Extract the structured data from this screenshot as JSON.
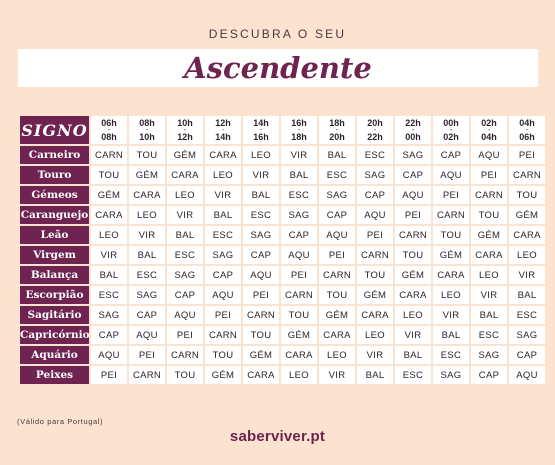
{
  "header": {
    "subtitle": "DESCUBRA O SEU",
    "title": "Ascendente"
  },
  "table": {
    "corner_label": "SIGNO",
    "hours": [
      {
        "from": "06h",
        "to": "08h"
      },
      {
        "from": "08h",
        "to": "10h"
      },
      {
        "from": "10h",
        "to": "12h"
      },
      {
        "from": "12h",
        "to": "14h"
      },
      {
        "from": "14h",
        "to": "16h"
      },
      {
        "from": "16h",
        "to": "18h"
      },
      {
        "from": "18h",
        "to": "20h"
      },
      {
        "from": "20h",
        "to": "22h"
      },
      {
        "from": "22h",
        "to": "00h"
      },
      {
        "from": "00h",
        "to": "02h"
      },
      {
        "from": "02h",
        "to": "04h"
      },
      {
        "from": "04h",
        "to": "06h"
      }
    ],
    "rows": [
      {
        "sign": "Carneiro",
        "values": [
          "CARN",
          "TOU",
          "GÉM",
          "CARA",
          "LEO",
          "VIR",
          "BAL",
          "ESC",
          "SAG",
          "CAP",
          "AQU",
          "PEI"
        ]
      },
      {
        "sign": "Touro",
        "values": [
          "TOU",
          "GÉM",
          "CARA",
          "LEO",
          "VIR",
          "BAL",
          "ESC",
          "SAG",
          "CAP",
          "AQU",
          "PEI",
          "CARN"
        ]
      },
      {
        "sign": "Gémeos",
        "values": [
          "GÉM",
          "CARA",
          "LEO",
          "VIR",
          "BAL",
          "ESC",
          "SAG",
          "CAP",
          "AQU",
          "PEI",
          "CARN",
          "TOU"
        ]
      },
      {
        "sign": "Caranguejo",
        "values": [
          "CARA",
          "LEO",
          "VIR",
          "BAL",
          "ESC",
          "SAG",
          "CAP",
          "AQU",
          "PEI",
          "CARN",
          "TOU",
          "GÉM"
        ]
      },
      {
        "sign": "Leão",
        "values": [
          "LEO",
          "VIR",
          "BAL",
          "ESC",
          "SAG",
          "CAP",
          "AQU",
          "PEI",
          "CARN",
          "TOU",
          "GÉM",
          "CARA"
        ]
      },
      {
        "sign": "Virgem",
        "values": [
          "VIR",
          "BAL",
          "ESC",
          "SAG",
          "CAP",
          "AQU",
          "PEI",
          "CARN",
          "TOU",
          "GÉM",
          "CARA",
          "LEO"
        ]
      },
      {
        "sign": "Balança",
        "values": [
          "BAL",
          "ESC",
          "SAG",
          "CAP",
          "AQU",
          "PEI",
          "CARN",
          "TOU",
          "GÉM",
          "CARA",
          "LEO",
          "VIR"
        ]
      },
      {
        "sign": "Escorpião",
        "values": [
          "ESC",
          "SAG",
          "CAP",
          "AQU",
          "PEI",
          "CARN",
          "TOU",
          "GÉM",
          "CARA",
          "LEO",
          "VIR",
          "BAL"
        ]
      },
      {
        "sign": "Sagitário",
        "values": [
          "SAG",
          "CAP",
          "AQU",
          "PEI",
          "CARN",
          "TOU",
          "GÉM",
          "CARA",
          "LEO",
          "VIR",
          "BAL",
          "ESC"
        ]
      },
      {
        "sign": "Capricórnio",
        "values": [
          "CAP",
          "AQU",
          "PEI",
          "CARN",
          "TOU",
          "GÉM",
          "CARA",
          "LEO",
          "VIR",
          "BAL",
          "ESC",
          "SAG"
        ]
      },
      {
        "sign": "Aquário",
        "values": [
          "AQU",
          "PEI",
          "CARN",
          "TOU",
          "GÉM",
          "CARA",
          "LEO",
          "VIR",
          "BAL",
          "ESC",
          "SAG",
          "CAP"
        ]
      },
      {
        "sign": "Peixes",
        "values": [
          "PEI",
          "CARN",
          "TOU",
          "GÉM",
          "CARA",
          "LEO",
          "VIR",
          "BAL",
          "ESC",
          "SAG",
          "CAP",
          "AQU"
        ]
      }
    ]
  },
  "footer": {
    "note": "(Válido para Portugal)",
    "site": "saberviver.pt"
  },
  "colors": {
    "background": "#fbe3cf",
    "accent": "#6e2350",
    "cell": "#ffffff"
  }
}
